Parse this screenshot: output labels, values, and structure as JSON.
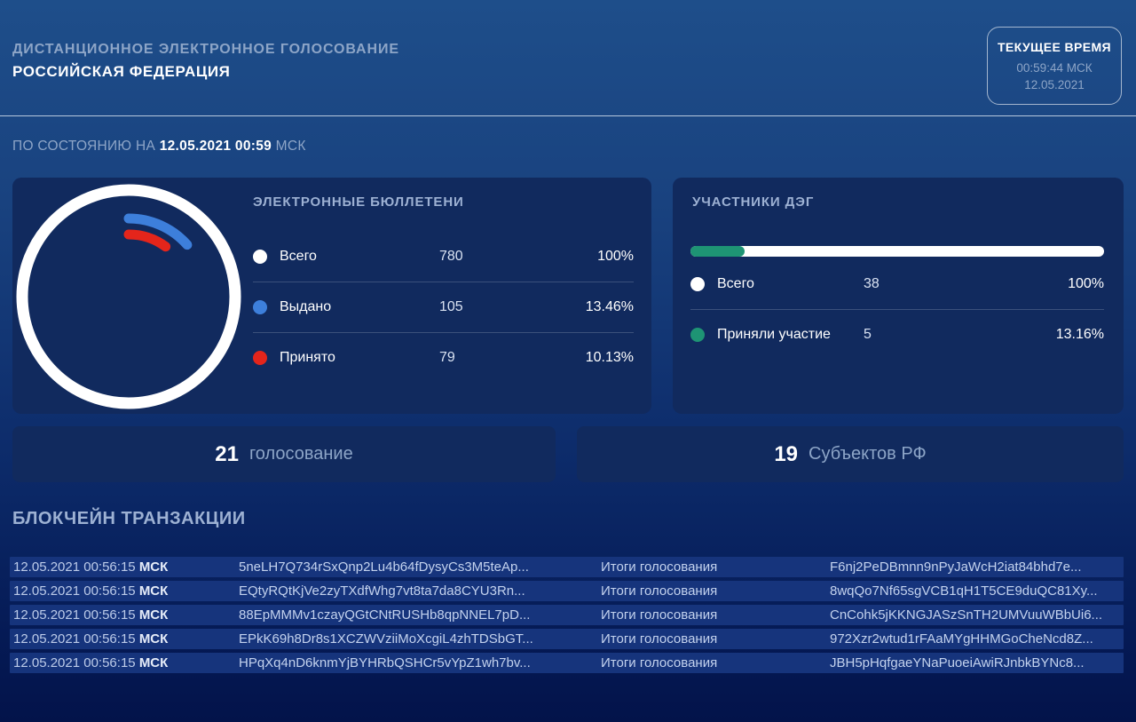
{
  "header": {
    "app_title": "ДИСТАНЦИОННОЕ ЭЛЕКТРОННОЕ ГОЛОСОВАНИЕ",
    "app_subtitle": "РОССИЙСКАЯ ФЕДЕРАЦИЯ",
    "clock": {
      "label": "ТЕКУЩЕЕ ВРЕМЯ",
      "time": "00:59:44 МСК",
      "date": "12.05.2021"
    }
  },
  "status_line": {
    "prefix": "ПО СОСТОЯНИЮ НА ",
    "datetime": "12.05.2021 00:59",
    "suffix": " МСК"
  },
  "ballots_card": {
    "title": "ЭЛЕКТРОННЫЕ БЮЛЛЕТЕНИ",
    "rows": [
      {
        "label": "Всего",
        "value": "780",
        "percent": "100%",
        "color": "#ffffff"
      },
      {
        "label": "Выдано",
        "value": "105",
        "percent": "13.46%",
        "color": "#3d7fdb"
      },
      {
        "label": "Принято",
        "value": "79",
        "percent": "10.13%",
        "color": "#e4251b"
      }
    ]
  },
  "participants_card": {
    "title": "УЧАСТНИКИ ДЭГ",
    "progress_percent": 13.16,
    "progress_color": "#1e9474",
    "rows": [
      {
        "label": "Всего",
        "value": "38",
        "percent": "100%",
        "color": "#ffffff"
      },
      {
        "label": "Приняли участие",
        "value": "5",
        "percent": "13.16%",
        "color": "#1e9474"
      }
    ]
  },
  "counters": [
    {
      "value": "21",
      "label": "голосование"
    },
    {
      "value": "19",
      "label": "Субъектов РФ"
    }
  ],
  "blockchain": {
    "title": "БЛОКЧЕЙН ТРАНЗАКЦИИ",
    "rows": [
      {
        "timestamp": "12.05.2021 00:56:15",
        "tz": "МСК",
        "hash": "5neLH7Q734rSxQnp2Lu4b64fDysyCs3M5teAp...",
        "type": "Итоги голосования",
        "result_hash": "F6nj2PeDBmnn9nPyJaWcH2iat84bhd7e..."
      },
      {
        "timestamp": "12.05.2021 00:56:15",
        "tz": "МСК",
        "hash": "EQtyRQtKjVe2zyTXdfWhg7vt8ta7da8CYU3Rn...",
        "type": "Итоги голосования",
        "result_hash": "8wqQo7Nf65sgVCB1qH1T5CE9duQC81Xy..."
      },
      {
        "timestamp": "12.05.2021 00:56:15",
        "tz": "МСК",
        "hash": "88EpMMMv1czayQGtCNtRUSHb8qpNNEL7pD...",
        "type": "Итоги голосования",
        "result_hash": "CnCohk5jKKNGJASzSnTH2UMVuuWBbUi6..."
      },
      {
        "timestamp": "12.05.2021 00:56:15",
        "tz": "МСК",
        "hash": "EPkK69h8Dr8s1XCZWVziiMoXcgiL4zhTDSbGT...",
        "type": "Итоги голосования",
        "result_hash": "972Xzr2wtud1rFAaMYgHHMGoCheNcd8Z..."
      },
      {
        "timestamp": "12.05.2021 00:56:15",
        "tz": "МСК",
        "hash": "HPqXq4nD6knmYjBYHRbQSHCr5vYpZ1wh7bv...",
        "type": "Итоги голосования",
        "result_hash": "JBH5pHqfgaeYNaPuoeiAwiRJnbkBYNc8..."
      }
    ]
  },
  "chart_data": [
    {
      "type": "pie",
      "subtype": "donut-rings",
      "title": "ЭЛЕКТРОННЫЕ БЮЛЛЕТЕНИ",
      "categories": [
        "Всего",
        "Выдано",
        "Принято"
      ],
      "values": [
        780,
        105,
        79
      ],
      "percents": [
        100,
        13.46,
        10.13
      ],
      "colors": [
        "#ffffff",
        "#3d7fdb",
        "#e4251b"
      ]
    },
    {
      "type": "bar",
      "subtype": "progress",
      "title": "УЧАСТНИКИ ДЭГ",
      "categories": [
        "Всего",
        "Приняли участие"
      ],
      "values": [
        38,
        5
      ],
      "percents": [
        100,
        13.16
      ],
      "colors": [
        "#ffffff",
        "#1e9474"
      ]
    }
  ]
}
